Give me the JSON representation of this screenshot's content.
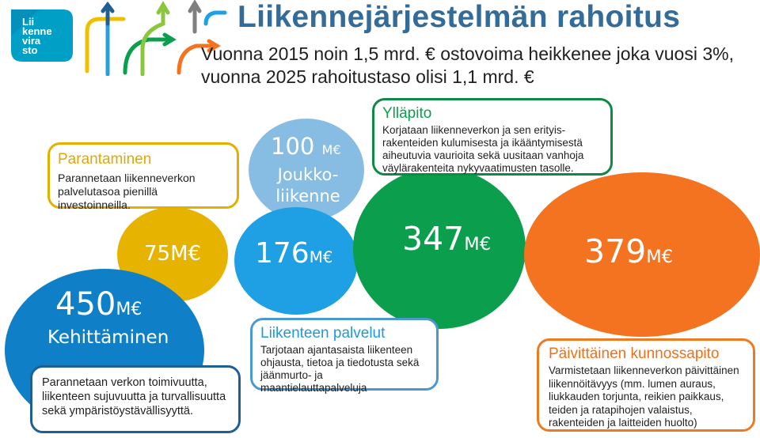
{
  "header": {
    "title": "Liikennejärjestelmän rahoitus",
    "subtitle_line1": "Vuonna 2015 noin 1,5 mrd. € ostovoima heikkenee joka vuosi 3%,",
    "subtitle_line2": "vuonna 2025 rahoitustaso olisi 1,1 mrd. €"
  },
  "logo": {
    "line1": "Lii",
    "line2": "kenne",
    "line3": "vira",
    "line4": "sto"
  },
  "colors": {
    "title": "#336b99",
    "kehittaminen": "#0f80c8",
    "parantaminen": "#e6b400",
    "joukkoliikenne": "#88bde3",
    "palvelut": "#1fa0e4",
    "yllapito": "#0b9e4c",
    "kunnossapito": "#f47320"
  },
  "bubbles": {
    "kehittaminen": {
      "amount": "450",
      "unit": "M€",
      "label": "Kehittäminen"
    },
    "parantaminen": {
      "amount": "75",
      "unit": "M€"
    },
    "joukkoliikenne": {
      "amount": "100",
      "unit": "M€",
      "label_line1": "Joukko-",
      "label_line2": "liikenne"
    },
    "palvelut": {
      "amount": "176",
      "unit": "M€"
    },
    "yllapito": {
      "amount": "347",
      "unit": "M€"
    },
    "kunnossapito": {
      "amount": "379",
      "unit": "M€"
    }
  },
  "boxes": {
    "parantaminen": {
      "title": "Parantaminen",
      "text": "Parannetaan liikenneverkon palvelutasoa pienillä investoinneilla."
    },
    "kehittaminen": {
      "text": "Parannetaan verkon toimivuutta, liikenteen sujuvuutta ja turvallisuutta sekä ympäristöystävällisyyttä."
    },
    "yllapito": {
      "title": "Ylläpito",
      "text": "Korjataan liikenneverkon ja sen erityis-rakenteiden kulumisesta ja ikääntymisestä aiheutuvia vaurioita sekä uusitaan vanhoja väylärakenteita nykyvaatimusten tasolle."
    },
    "palvelut": {
      "title": "Liikenteen palvelut",
      "text": "Tarjotaan ajantasaista liikenteen ohjausta, tietoa ja tiedotusta sekä jäänmurto- ja maantielauttapalveluja"
    },
    "kunnossapito": {
      "title": "Päivittäinen kunnossapito",
      "text": "Varmistetaan liikenneverkon päivittäinen liikennöitävyys (mm. lumen auraus, liukkauden torjunta, reikien paikkaus, teiden ja ratapihojen valaistus, rakenteiden ja laitteiden huolto)"
    }
  }
}
